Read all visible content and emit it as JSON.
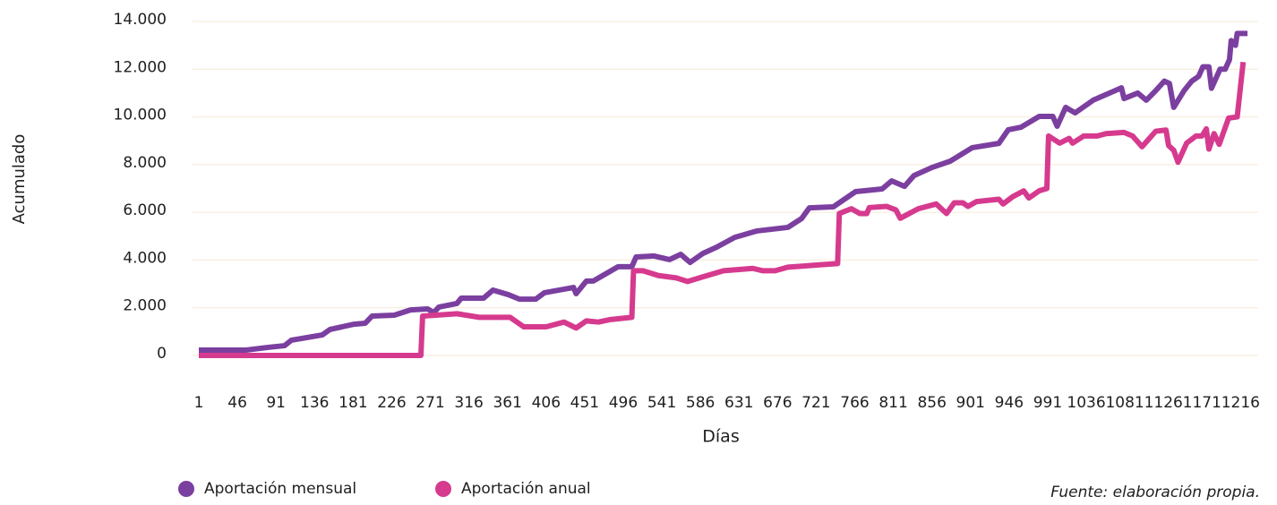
{
  "chart_data": {
    "type": "line",
    "y_label": "Acumulado",
    "x_label": "Días",
    "source": "Fuente: elaboración propia.",
    "xlim": [
      1,
      1225
    ],
    "xticks": [
      1,
      46,
      91,
      136,
      181,
      226,
      271,
      316,
      361,
      406,
      451,
      496,
      541,
      586,
      631,
      676,
      721,
      766,
      811,
      856,
      901,
      946,
      991,
      1036,
      1081,
      1126,
      1171,
      1216
    ],
    "ylim": [
      0,
      14000
    ],
    "yticks": [
      {
        "value": 0,
        "label": "0"
      },
      {
        "value": 2000,
        "label": "2.000"
      },
      {
        "value": 4000,
        "label": "4.000"
      },
      {
        "value": 6000,
        "label": "6.000"
      },
      {
        "value": 8000,
        "label": "8.000"
      },
      {
        "value": 10000,
        "label": "10.000"
      },
      {
        "value": 12000,
        "label": "12.000"
      },
      {
        "value": 14000,
        "label": "14.000"
      }
    ],
    "grid": true,
    "legend": "bottom-left",
    "series": [
      {
        "name": "Aportación mensual",
        "color": "#7b3fa0",
        "x": [
          1,
          56,
          82,
          101,
          109,
          145,
          154,
          182,
          195,
          203,
          229,
          248,
          268,
          275,
          281,
          302,
          307,
          333,
          344,
          362,
          375,
          394,
          404,
          438,
          441,
          453,
          461,
          490,
          506,
          511,
          532,
          550,
          563,
          574,
          589,
          605,
          626,
          652,
          688,
          704,
          713,
          741,
          767,
          798,
          809,
          824,
          835,
          856,
          877,
          903,
          934,
          945,
          960,
          981,
          997,
          1002,
          1012,
          1023,
          1044,
          1065,
          1077,
          1080,
          1096,
          1106,
          1117,
          1127,
          1133,
          1138,
          1150,
          1159,
          1167,
          1172,
          1179,
          1182,
          1192,
          1198,
          1203,
          1205,
          1210,
          1212,
          1224
        ],
        "values": [
          225,
          225,
          340,
          410,
          640,
          860,
          1090,
          1310,
          1350,
          1650,
          1690,
          1910,
          1950,
          1800,
          2030,
          2180,
          2400,
          2400,
          2740,
          2550,
          2360,
          2360,
          2630,
          2850,
          2590,
          3120,
          3120,
          3720,
          3720,
          4130,
          4170,
          4020,
          4240,
          3900,
          4280,
          4540,
          4950,
          5220,
          5370,
          5740,
          6190,
          6230,
          6870,
          6980,
          7320,
          7090,
          7540,
          7880,
          8140,
          8710,
          8890,
          9460,
          9570,
          10020,
          10020,
          9610,
          10400,
          10170,
          10700,
          11030,
          11220,
          10770,
          11000,
          10700,
          11100,
          11500,
          11400,
          10400,
          11100,
          11500,
          11700,
          12100,
          12100,
          11200,
          12000,
          12000,
          12400,
          13200,
          13000,
          13500,
          13500
        ]
      },
      {
        "name": "Aportación anual",
        "color": "#d63a8e",
        "x": [
          1,
          260,
          262,
          302,
          328,
          364,
          380,
          406,
          427,
          441,
          453,
          467,
          480,
          506,
          508,
          519,
          537,
          558,
          571,
          589,
          613,
          647,
          659,
          673,
          688,
          725,
          746,
          748,
          762,
          772,
          780,
          783,
          803,
          814,
          819,
          840,
          861,
          873,
          882,
          892,
          898,
          908,
          934,
          939,
          950,
          963,
          969,
          981,
          990,
          992,
          1005,
          1016,
          1020,
          1033,
          1049,
          1059,
          1080,
          1090,
          1101,
          1117,
          1129,
          1132,
          1138,
          1143,
          1153,
          1164,
          1171,
          1176,
          1179,
          1185,
          1191,
          1202,
          1212,
          1219
        ],
        "values": [
          0,
          0,
          1650,
          1750,
          1600,
          1600,
          1200,
          1200,
          1400,
          1150,
          1450,
          1400,
          1500,
          1600,
          3550,
          3550,
          3350,
          3250,
          3100,
          3300,
          3550,
          3650,
          3550,
          3550,
          3700,
          3800,
          3850,
          5950,
          6150,
          5950,
          5950,
          6200,
          6250,
          6100,
          5750,
          6150,
          6350,
          5950,
          6400,
          6400,
          6250,
          6450,
          6550,
          6350,
          6650,
          6900,
          6600,
          6900,
          7000,
          9200,
          8900,
          9100,
          8900,
          9200,
          9200,
          9300,
          9350,
          9200,
          8750,
          9400,
          9450,
          8800,
          8600,
          8100,
          8900,
          9200,
          9200,
          9500,
          8650,
          9300,
          8850,
          9950,
          10000,
          12300
        ]
      }
    ]
  }
}
